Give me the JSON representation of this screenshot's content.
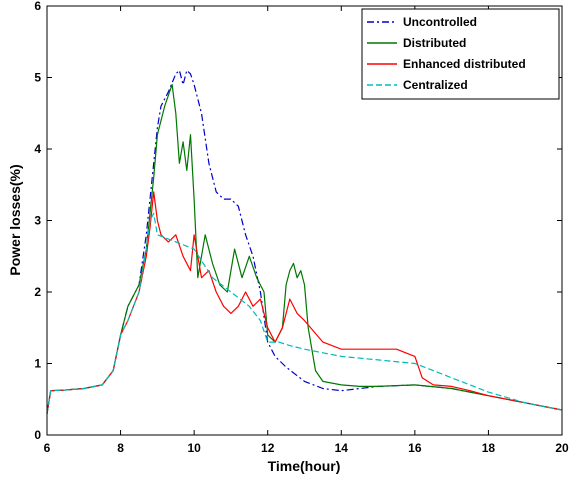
{
  "chart_data": {
    "type": "line",
    "title": "",
    "xlabel": "Time(hour)",
    "ylabel": "Power losses(%)",
    "xlim": [
      6,
      20
    ],
    "ylim": [
      0,
      6
    ],
    "xticks": [
      "6",
      "8",
      "10",
      "12",
      "14",
      "16",
      "18",
      "20"
    ],
    "yticks": [
      "0",
      "1",
      "2",
      "3",
      "4",
      "5",
      "6"
    ],
    "grid": false,
    "legend_position": "top-right",
    "series": [
      {
        "name": "Uncontrolled",
        "color": "#0000cc",
        "dash": "dash-dot",
        "x": [
          6.0,
          6.1,
          6.5,
          7.0,
          7.5,
          7.8,
          8.0,
          8.2,
          8.5,
          8.7,
          8.9,
          9.0,
          9.1,
          9.3,
          9.5,
          9.6,
          9.7,
          9.8,
          9.9,
          10.0,
          10.2,
          10.4,
          10.6,
          10.8,
          11.0,
          11.2,
          11.4,
          11.6,
          11.8,
          12.0,
          12.2,
          12.5,
          13.0,
          13.5,
          14.0,
          14.5,
          15.0,
          16.0,
          17.0,
          17.5,
          18.0,
          19.0,
          20.0
        ],
        "y": [
          0.3,
          0.62,
          0.63,
          0.65,
          0.7,
          0.9,
          1.4,
          1.8,
          2.1,
          2.8,
          3.8,
          4.3,
          4.6,
          4.8,
          5.05,
          5.1,
          4.9,
          5.1,
          5.05,
          4.9,
          4.5,
          3.8,
          3.4,
          3.3,
          3.3,
          3.2,
          2.8,
          2.5,
          2.0,
          1.3,
          1.1,
          0.95,
          0.75,
          0.65,
          0.62,
          0.65,
          0.68,
          0.7,
          0.65,
          0.6,
          0.55,
          0.45,
          0.35
        ]
      },
      {
        "name": "Distributed",
        "color": "#007700",
        "dash": "solid",
        "x": [
          6.0,
          6.1,
          6.5,
          7.0,
          7.5,
          7.8,
          8.0,
          8.2,
          8.5,
          8.7,
          8.9,
          9.0,
          9.2,
          9.4,
          9.5,
          9.6,
          9.7,
          9.8,
          9.9,
          10.0,
          10.1,
          10.3,
          10.5,
          10.7,
          10.9,
          11.1,
          11.3,
          11.5,
          11.7,
          11.9,
          12.0,
          12.2,
          12.4,
          12.5,
          12.6,
          12.7,
          12.8,
          12.9,
          13.0,
          13.1,
          13.3,
          13.5,
          14.0,
          14.5,
          15.0,
          16.0,
          17.0,
          17.5,
          18.0,
          19.0,
          20.0
        ],
        "y": [
          0.3,
          0.62,
          0.63,
          0.65,
          0.7,
          0.9,
          1.4,
          1.8,
          2.1,
          2.6,
          3.6,
          4.2,
          4.6,
          4.9,
          4.5,
          3.8,
          4.1,
          3.7,
          4.2,
          3.3,
          2.2,
          2.8,
          2.4,
          2.1,
          2.0,
          2.6,
          2.2,
          2.5,
          2.2,
          2.0,
          1.4,
          1.3,
          1.5,
          2.1,
          2.3,
          2.4,
          2.2,
          2.3,
          2.1,
          1.5,
          0.9,
          0.75,
          0.7,
          0.68,
          0.68,
          0.7,
          0.65,
          0.6,
          0.55,
          0.45,
          0.35
        ]
      },
      {
        "name": "Enhanced distributed",
        "color": "#ff0000",
        "dash": "solid",
        "x": [
          6.0,
          6.1,
          6.5,
          7.0,
          7.5,
          7.8,
          8.0,
          8.2,
          8.5,
          8.7,
          8.8,
          8.9,
          9.0,
          9.1,
          9.3,
          9.5,
          9.7,
          9.9,
          10.0,
          10.2,
          10.4,
          10.6,
          10.8,
          11.0,
          11.2,
          11.4,
          11.6,
          11.8,
          12.0,
          12.2,
          12.4,
          12.6,
          12.8,
          13.0,
          13.5,
          14.0,
          14.5,
          15.0,
          15.5,
          16.0,
          16.2,
          16.5,
          17.0,
          17.5,
          18.0,
          19.0,
          20.0
        ],
        "y": [
          0.3,
          0.62,
          0.63,
          0.65,
          0.7,
          0.9,
          1.4,
          1.6,
          2.0,
          2.5,
          2.9,
          3.4,
          3.0,
          2.8,
          2.7,
          2.8,
          2.5,
          2.3,
          2.8,
          2.2,
          2.3,
          2.0,
          1.8,
          1.7,
          1.8,
          2.0,
          1.8,
          1.9,
          1.5,
          1.3,
          1.5,
          1.9,
          1.7,
          1.6,
          1.3,
          1.2,
          1.2,
          1.2,
          1.2,
          1.1,
          0.8,
          0.7,
          0.68,
          0.62,
          0.55,
          0.45,
          0.35
        ]
      },
      {
        "name": "Centralized",
        "color": "#00bbbb",
        "dash": "dashed",
        "x": [
          6.0,
          6.1,
          6.5,
          7.0,
          7.5,
          7.8,
          8.0,
          8.2,
          8.5,
          8.7,
          8.8,
          8.9,
          9.0,
          9.5,
          10.0,
          10.5,
          11.0,
          11.5,
          11.8,
          12.0,
          12.3,
          12.6,
          13.0,
          13.5,
          14.0,
          15.0,
          16.0,
          16.5,
          17.0,
          17.5,
          18.0,
          19.0,
          20.0
        ],
        "y": [
          0.3,
          0.62,
          0.63,
          0.65,
          0.7,
          0.9,
          1.4,
          1.6,
          2.0,
          2.6,
          3.0,
          3.1,
          2.8,
          2.7,
          2.6,
          2.2,
          2.0,
          1.8,
          1.6,
          1.3,
          1.3,
          1.25,
          1.2,
          1.15,
          1.1,
          1.05,
          1.0,
          0.9,
          0.8,
          0.7,
          0.6,
          0.45,
          0.35
        ]
      }
    ]
  }
}
